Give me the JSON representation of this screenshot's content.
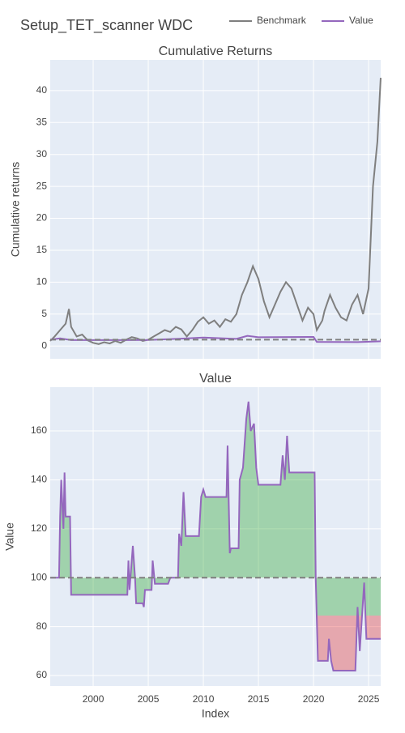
{
  "title": "Setup_TET_scanner WDC",
  "chart_data": [
    {
      "type": "line",
      "title": "Cumulative Returns",
      "ylabel": "Cumulative returns",
      "xlim": [
        1996.1,
        2026.1
      ],
      "ylim": [
        -2,
        44.8
      ],
      "xticks": [
        2000,
        2005,
        2010,
        2015,
        2020,
        2025
      ],
      "yticks": [
        0,
        5,
        10,
        15,
        20,
        25,
        30,
        35,
        40
      ],
      "grid": true,
      "baseline": 1,
      "series": [
        {
          "name": "Benchmark",
          "color": "#7f7f7f",
          "x": [
            1996.1,
            1996.5,
            1997,
            1997.5,
            1997.8,
            1998,
            1998.5,
            1999,
            1999.5,
            2000,
            2000.5,
            2001,
            2001.5,
            2002,
            2002.5,
            2003,
            2003.5,
            2004,
            2004.5,
            2005,
            2005.5,
            2006,
            2006.5,
            2007,
            2007.5,
            2008,
            2008.5,
            2009,
            2009.5,
            2010,
            2010.5,
            2011,
            2011.5,
            2012,
            2012.5,
            2013,
            2013.5,
            2014,
            2014.5,
            2015,
            2015.5,
            2016,
            2016.5,
            2017,
            2017.5,
            2018,
            2018.5,
            2019,
            2019.5,
            2020,
            2020.3,
            2020.8,
            2021,
            2021.5,
            2022,
            2022.5,
            2023,
            2023.5,
            2024,
            2024.5,
            2025,
            2025.4,
            2025.8,
            2026.1
          ],
          "values": [
            0.8,
            1.5,
            2.5,
            3.5,
            5.8,
            3,
            1.5,
            1.8,
            0.9,
            0.5,
            0.3,
            0.6,
            0.4,
            0.8,
            0.5,
            1.0,
            1.4,
            1.2,
            0.8,
            1.0,
            1.5,
            2.0,
            2.5,
            2.2,
            3.0,
            2.6,
            1.5,
            2.5,
            3.8,
            4.5,
            3.5,
            4.0,
            3.0,
            4.2,
            3.8,
            5.0,
            8.0,
            10.0,
            12.5,
            10.5,
            7.0,
            4.5,
            6.5,
            8.5,
            10.0,
            9.0,
            6.5,
            4.0,
            6.0,
            5.0,
            2.5,
            4.0,
            5.5,
            8.0,
            6.0,
            4.5,
            4.0,
            6.5,
            8.0,
            5.0,
            9.0,
            25,
            32,
            42
          ]
        },
        {
          "name": "Value",
          "color": "#9467bd",
          "x": [
            1996.1,
            1997,
            1998,
            2003,
            2005,
            2008,
            2010,
            2013,
            2014,
            2015,
            2020,
            2020.3,
            2024,
            2026.1
          ],
          "values": [
            1,
            1.2,
            0.93,
            0.93,
            0.95,
            1.15,
            1.33,
            1.12,
            1.6,
            1.38,
            1.43,
            0.65,
            0.62,
            0.75
          ]
        }
      ]
    },
    {
      "type": "area",
      "title": "Value",
      "xlabel": "Index",
      "ylabel": "Value",
      "xlim": [
        1996.1,
        2026.1
      ],
      "ylim": [
        55.7,
        177.9
      ],
      "xticks": [
        2000,
        2005,
        2010,
        2015,
        2020,
        2025
      ],
      "yticks": [
        60,
        80,
        100,
        120,
        140,
        160
      ],
      "grid": true,
      "baseline": 100,
      "series": [
        {
          "name": "Value",
          "color": "#9467bd",
          "x": [
            1996.1,
            1996.9,
            1997.0,
            1997.1,
            1997.3,
            1997.4,
            1997.5,
            1997.9,
            1998.0,
            2003.1,
            2003.2,
            2003.3,
            2003.6,
            2003.8,
            2003.9,
            2004.5,
            2004.6,
            2004.7,
            2005.3,
            2005.4,
            2005.6,
            2006.8,
            2007.0,
            2007.7,
            2007.8,
            2008.0,
            2008.2,
            2008.4,
            2009.6,
            2009.8,
            2010,
            2010.2,
            2012.1,
            2012.2,
            2012.4,
            2012.5,
            2013.2,
            2013.3,
            2013.6,
            2013.9,
            2014.1,
            2014.3,
            2014.6,
            2014.8,
            2015.0,
            2017.0,
            2017.2,
            2017.4,
            2017.6,
            2017.8,
            2020.1,
            2020.2,
            2020.4,
            2021.3,
            2021.4,
            2021.6,
            2021.8,
            2023.8,
            2024.0,
            2024.2,
            2024.6,
            2024.8,
            2026.1
          ],
          "values": [
            100,
            100,
            125,
            140,
            120,
            143,
            125,
            125,
            93,
            93,
            107,
            95,
            113,
            100,
            89.5,
            89.5,
            88,
            95,
            95,
            107,
            97.5,
            97.5,
            100,
            100,
            118,
            113,
            135,
            117,
            117,
            133,
            136,
            133,
            133,
            154,
            110,
            112,
            112,
            140,
            145,
            165,
            172,
            160,
            163,
            145,
            138,
            138,
            150,
            140,
            158,
            143,
            143,
            100,
            66,
            66,
            75,
            66,
            62,
            62,
            88,
            70,
            98,
            75,
            75
          ]
        }
      ]
    }
  ]
}
